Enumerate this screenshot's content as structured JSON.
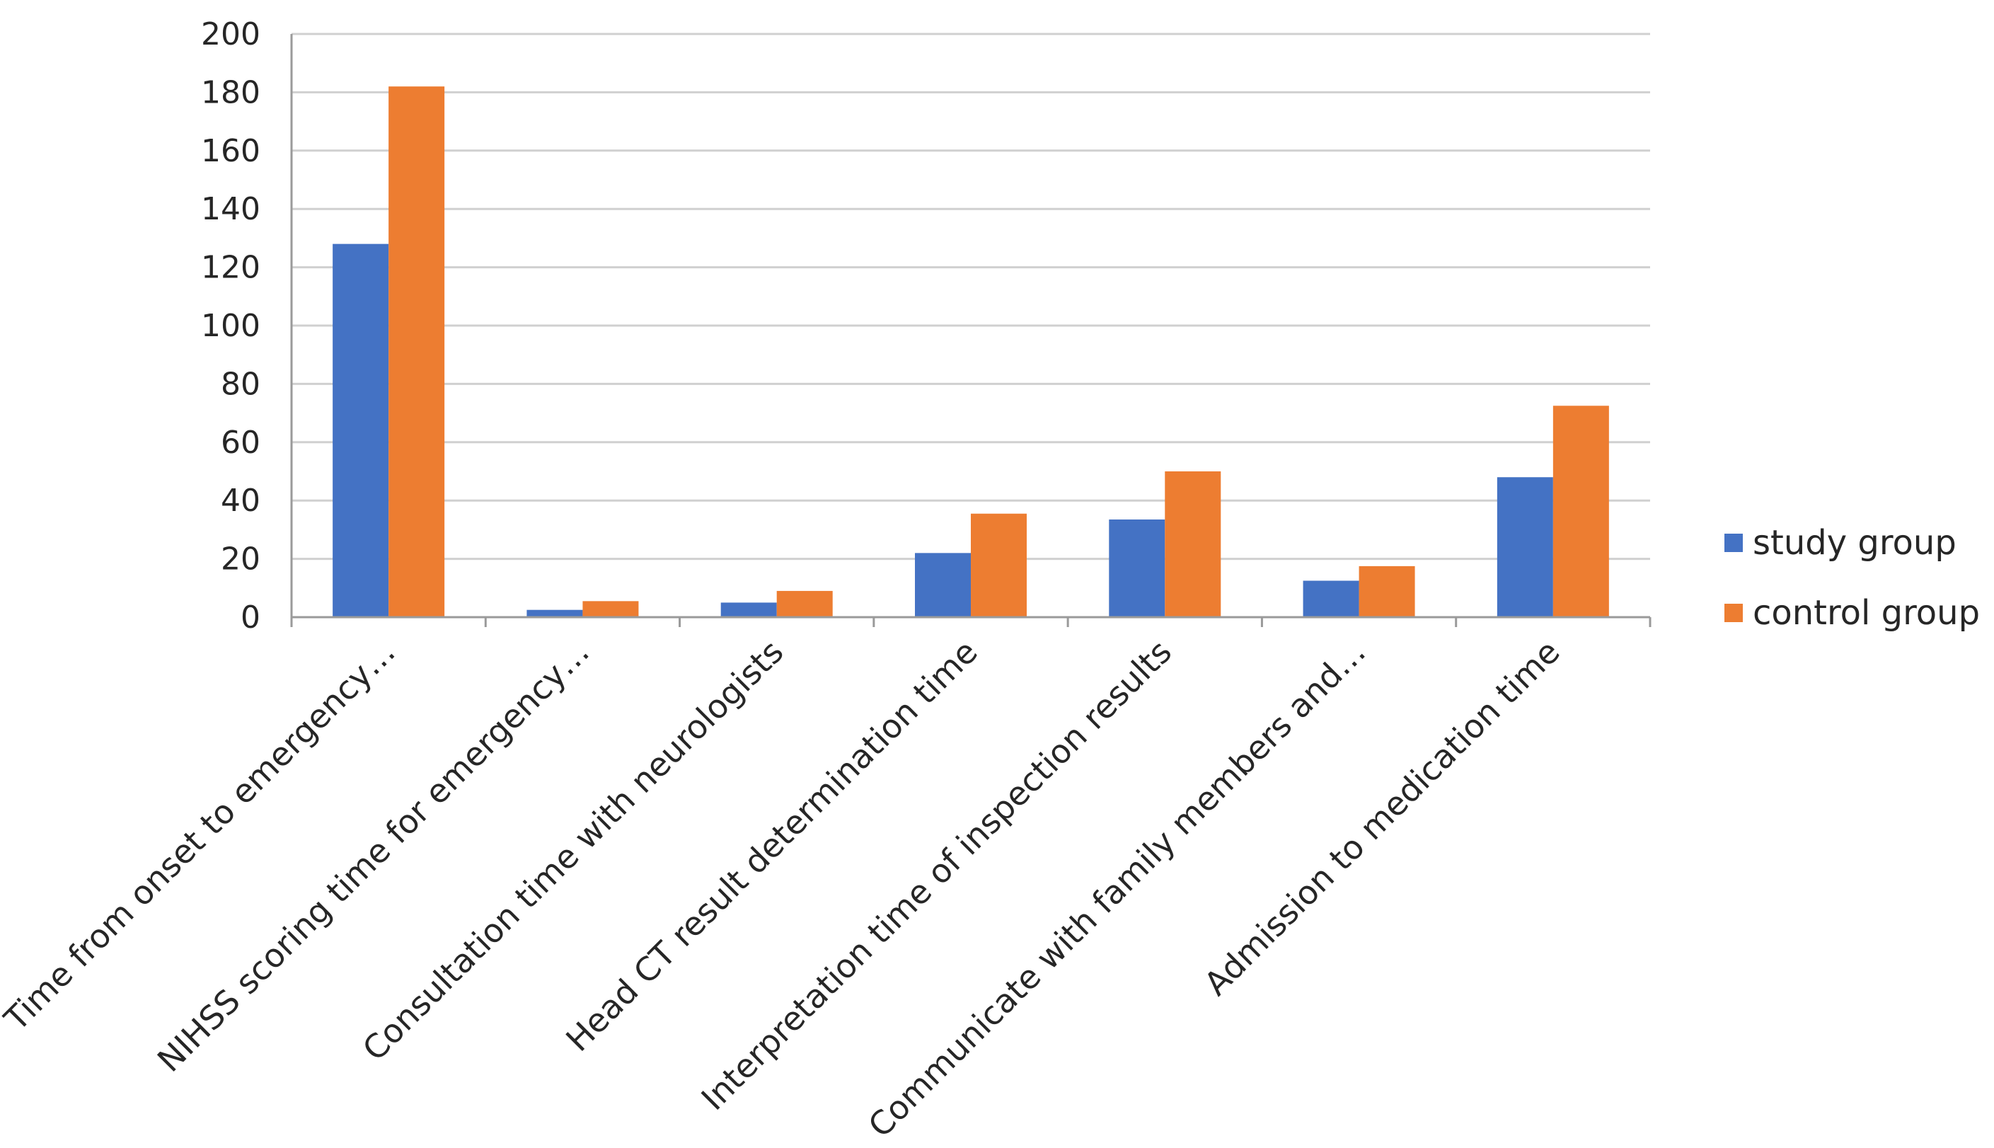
{
  "chart_data": {
    "type": "bar",
    "title": "",
    "xlabel": "",
    "ylabel": "",
    "ylim": [
      0,
      200
    ],
    "yticks": [
      0,
      20,
      40,
      60,
      80,
      100,
      120,
      140,
      160,
      180,
      200
    ],
    "grid": true,
    "legend_position": "right",
    "categories": [
      "Time from onset to emergency…",
      "NIHSS scoring time for emergency…",
      "Consultation time with neurologists",
      "Head CT result determination time",
      "Interpretation time of inspection results",
      "Communicate with family members and…",
      "Admission to medication time"
    ],
    "series": [
      {
        "name": "study group",
        "color": "#4472C4",
        "values": [
          128,
          2.5,
          5,
          22,
          33.5,
          12.5,
          48
        ]
      },
      {
        "name": "control group",
        "color": "#ED7D31",
        "values": [
          182,
          5.5,
          9,
          35.5,
          50,
          17.5,
          72.5
        ]
      }
    ]
  }
}
